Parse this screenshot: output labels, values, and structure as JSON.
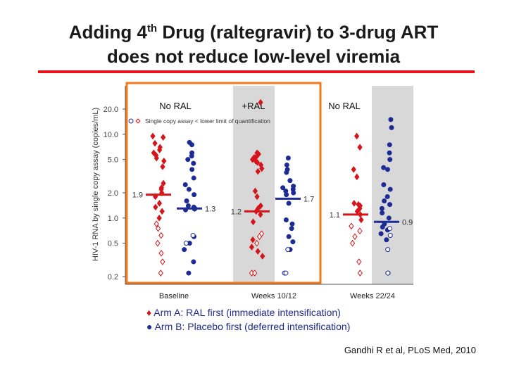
{
  "title": {
    "line1_pre": "Adding 4",
    "line1_sup": "th",
    "line1_post": " Drug (raltegravir) to 3-drug ART",
    "line2": "does not reduce low-level viremia"
  },
  "chart_data": {
    "type": "scatter",
    "ylabel": "HIV-1 RNA by single copy assay (copies/mL)",
    "y_scale": "log",
    "y_ticks": [
      0.2,
      0.5,
      1.0,
      2.0,
      5.0,
      10.0,
      20.0
    ],
    "y_tick_labels": [
      "0.2",
      "0.5",
      "1.0",
      "2.0",
      "5.0",
      "10.0",
      "20.0"
    ],
    "ylim": [
      0.15,
      30
    ],
    "groups": [
      "Baseline",
      "Weeks 10/12",
      "Weeks 22/24"
    ],
    "group_headers": [
      "No RAL",
      "+RAL",
      "No RAL"
    ],
    "annotation": "Single copy assay < lower limit of quantification",
    "series": [
      {
        "name": "Arm A",
        "color": "#d4161c",
        "shape": "diamond",
        "medians": [
          1.9,
          1.2,
          1.1
        ],
        "median_labels": [
          "1.9",
          "1.2",
          "1.1"
        ],
        "above_lloq": [
          [
            9.5,
            9.2,
            7.8,
            7.0,
            6.5,
            6.0,
            5.6,
            5.2,
            4.8,
            4.1,
            2.6,
            2.3,
            2.2,
            2.0,
            1.8,
            1.5,
            1.35,
            1.2,
            1.0
          ],
          [
            24,
            6.0,
            5.8,
            5.5,
            5.3,
            5.0,
            4.8,
            4.6,
            4.3,
            3.9,
            3.6,
            2.1,
            1.8,
            1.4,
            1.3,
            1.2,
            1.1,
            0.9,
            0.55,
            0.45,
            0.4,
            0.35
          ],
          [
            9.5,
            7.0,
            3.8,
            3.1,
            1.5,
            1.45,
            1.4,
            1.3,
            1.2,
            1.1,
            0.95
          ]
        ],
        "below_lloq": [
          [
            0.85,
            0.75,
            0.62,
            0.5,
            0.38,
            0.3,
            0.22
          ],
          [
            0.65,
            0.6,
            0.5,
            0.22,
            0.22
          ],
          [
            0.8,
            0.7,
            0.6,
            0.5,
            0.3,
            0.22
          ]
        ]
      },
      {
        "name": "Arm B",
        "color": "#1d2b95",
        "shape": "circle",
        "medians": [
          1.3,
          1.7,
          0.9
        ],
        "median_labels": [
          "1.3",
          "1.7",
          "0.9"
        ],
        "above_lloq": [
          [
            8.0,
            7.5,
            6.0,
            5.5,
            5.0,
            4.5,
            3.8,
            3.0,
            2.5,
            2.2,
            1.9,
            1.6,
            1.4,
            1.35,
            1.3,
            1.28,
            1.25,
            0.6,
            0.5,
            0.42,
            0.3,
            0.22
          ],
          [
            5.2,
            4.3,
            3.8,
            3.5,
            2.8,
            2.4,
            2.3,
            2.2,
            2.1,
            2.0,
            1.9,
            1.5,
            0.95,
            0.85,
            0.75,
            0.6,
            0.52,
            0.42
          ],
          [
            15,
            12,
            7.5,
            6.0,
            5.0,
            4.0,
            3.8,
            2.5,
            2.2,
            1.8,
            1.6,
            1.45,
            1.3,
            1.15,
            1.0,
            0.85,
            0.78,
            0.72,
            0.65,
            0.55
          ]
        ],
        "below_lloq": [
          [
            0.62,
            0.5
          ],
          [
            0.42,
            0.22,
            0.22
          ],
          [
            0.75,
            0.62,
            0.42,
            0.22,
            0.22
          ]
        ]
      }
    ]
  },
  "legend": {
    "arm_a_symbol": "♦",
    "arm_a": "Arm A: RAL first (immediate intensification)",
    "arm_b_symbol": "●",
    "arm_b": "Arm B: Placebo first (deferred intensification)"
  },
  "citation": "Gandhi R et al, PLoS Med, 2010",
  "colors": {
    "rule": "#e8141c",
    "highlight_box": "#f07a1d",
    "shaded_panel": "#d8d8d8"
  }
}
